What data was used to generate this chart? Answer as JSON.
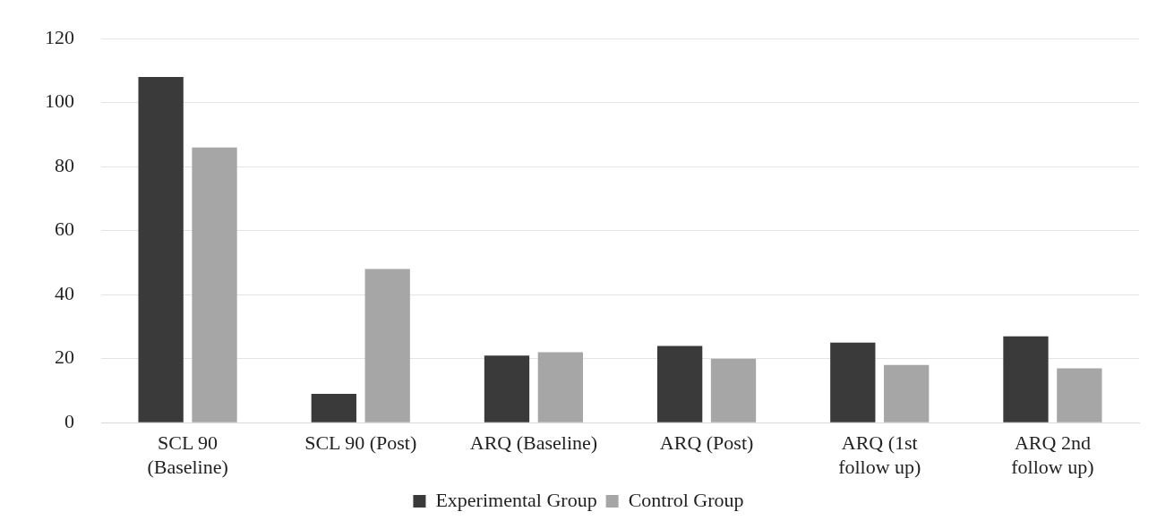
{
  "chart_data": {
    "type": "bar",
    "categories": [
      "SCL 90\n(Baseline)",
      "SCL 90 (Post)",
      "ARQ (Baseline)",
      "ARQ (Post)",
      "ARQ (1st\nfollow up)",
      "ARQ 2nd\nfollow up)"
    ],
    "series": [
      {
        "name": "Experimental Group",
        "color": "#3a3a3a",
        "values": [
          108,
          9,
          21,
          24,
          25,
          27
        ]
      },
      {
        "name": "Control Group",
        "color": "#a6a6a6",
        "values": [
          86,
          48,
          22,
          20,
          18,
          17
        ]
      }
    ],
    "ylim": [
      0,
      120
    ],
    "yticks": [
      0,
      20,
      40,
      60,
      80,
      100,
      120
    ],
    "grid": "y",
    "legend": "bottom"
  }
}
